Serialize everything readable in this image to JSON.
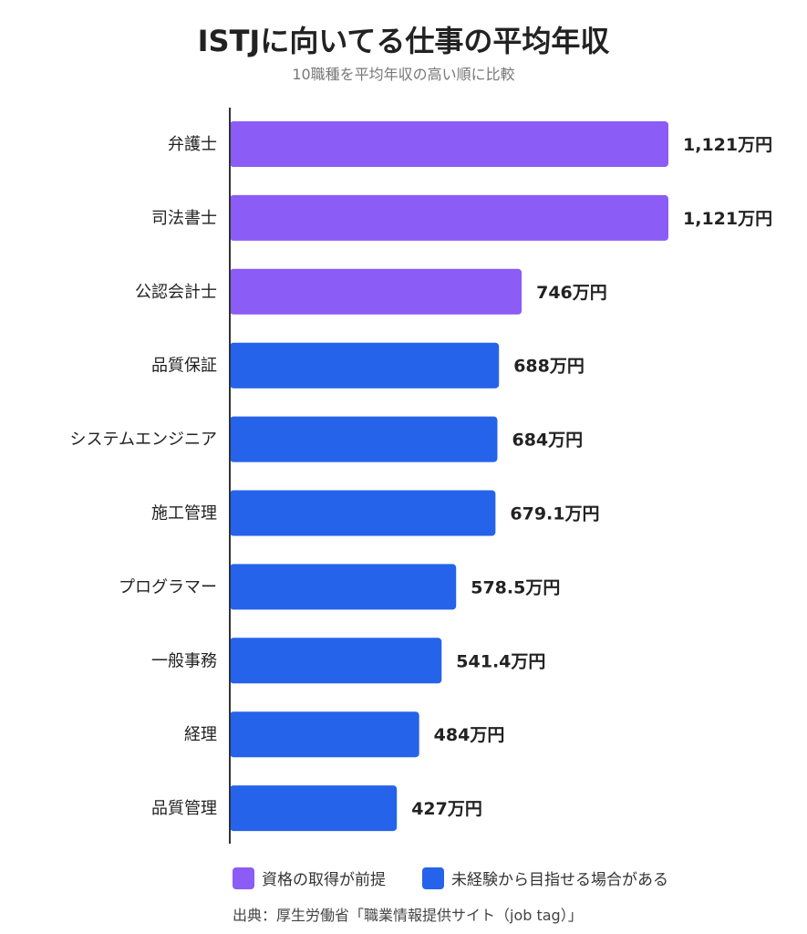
{
  "chart_data": {
    "type": "bar",
    "orientation": "horizontal",
    "title": "ISTJに向いてる仕事の平均年収",
    "subtitle": "10職種を平均年収の高い順に比較",
    "categories": [
      "弁護士",
      "司法書士",
      "公認会計士",
      "品質保証",
      "システムエンジニア",
      "施工管理",
      "プログラマー",
      "一般事務",
      "経理",
      "品質管理"
    ],
    "values": [
      1121,
      1121,
      746,
      688,
      684,
      679.1,
      578.5,
      541.4,
      484,
      427
    ],
    "value_labels": [
      "1,121万円",
      "1,121万円",
      "746万円",
      "688万円",
      "684万円",
      "679.1万円",
      "578.5万円",
      "541.4万円",
      "484万円",
      "427万円"
    ],
    "groups": [
      0,
      0,
      0,
      1,
      1,
      1,
      1,
      1,
      1,
      1
    ],
    "series": [
      {
        "name": "資格の取得が前提",
        "color": "#8b5cf6"
      },
      {
        "name": "未経験から目指せる場合がある",
        "color": "#2563eb"
      }
    ],
    "xlim": [
      0,
      1121
    ],
    "grid": false,
    "legend_position": "bottom"
  },
  "source": "出典：厚生労働省「職業情報提供サイト（job tag）」"
}
